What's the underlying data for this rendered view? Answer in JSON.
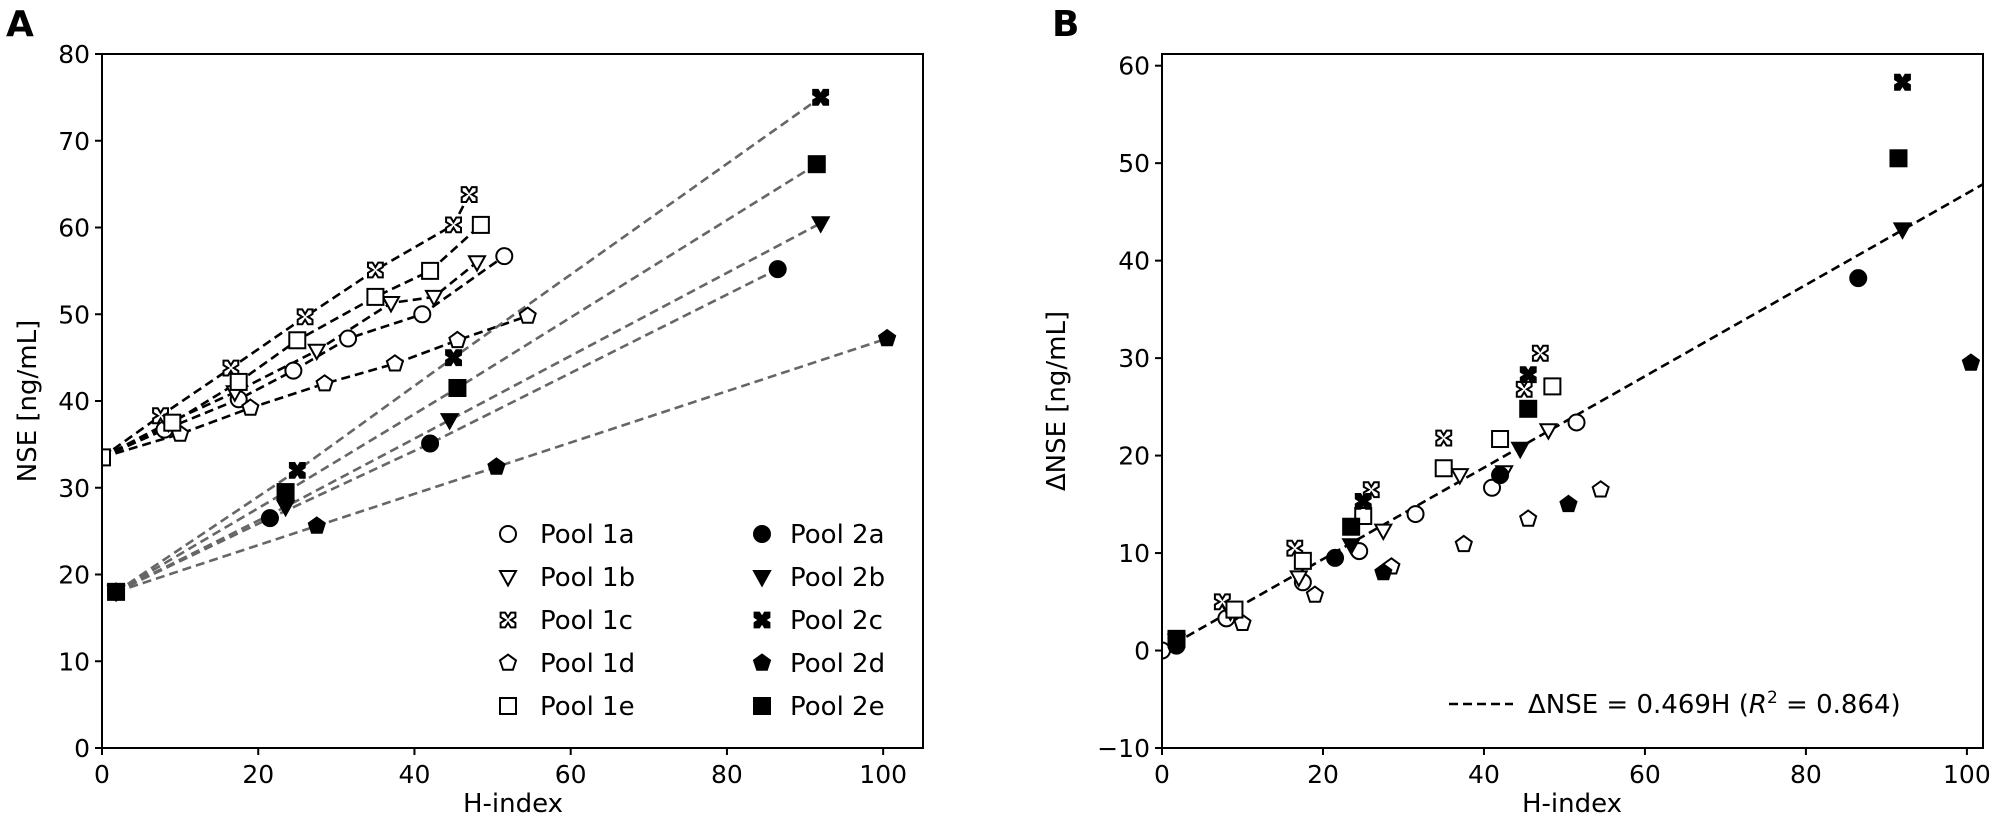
{
  "chart_data": [
    {
      "panel": "A",
      "type": "line",
      "xlabel": "H-index",
      "ylabel": "NSE [ng/mL]",
      "xlim": [
        0,
        105.1
      ],
      "ylim": [
        0,
        80
      ],
      "xticks": [
        0,
        20,
        40,
        60,
        80,
        100
      ],
      "yticks": [
        0,
        10,
        20,
        30,
        40,
        50,
        60,
        70,
        80
      ],
      "grid": false,
      "legend_placement": "lower-right",
      "series": [
        {
          "name": "Pool 1a",
          "marker": "circle",
          "filled": false,
          "line_color": "#000000",
          "points": [
            [
              0,
              33.5
            ],
            [
              8,
              36.7
            ],
            [
              17.5,
              40.2
            ],
            [
              24.5,
              43.5
            ],
            [
              31.5,
              47.2
            ],
            [
              41,
              50
            ],
            [
              51.5,
              56.7
            ]
          ]
        },
        {
          "name": "Pool 1b",
          "marker": "triangle-down",
          "filled": false,
          "line_color": "#000000",
          "points": [
            [
              0,
              33.5
            ],
            [
              8.5,
              37.5
            ],
            [
              17,
              41
            ],
            [
              27.5,
              45.8
            ],
            [
              37,
              51.3
            ],
            [
              42.5,
              52
            ],
            [
              48,
              56
            ]
          ]
        },
        {
          "name": "Pool 1c",
          "marker": "x",
          "filled": false,
          "line_color": "#000000",
          "points": [
            [
              0,
              33.5
            ],
            [
              7.5,
              38.3
            ],
            [
              16.5,
              43.8
            ],
            [
              26,
              49.7
            ],
            [
              35,
              55.1
            ],
            [
              45,
              60.3
            ],
            [
              47,
              63.8
            ]
          ]
        },
        {
          "name": "Pool 1d",
          "marker": "pentagon",
          "filled": false,
          "line_color": "#000000",
          "points": [
            [
              0,
              33.5
            ],
            [
              10,
              36.2
            ],
            [
              19,
              39.2
            ],
            [
              28.5,
              42
            ],
            [
              37.5,
              44.3
            ],
            [
              45.5,
              47
            ],
            [
              54.5,
              49.8
            ]
          ]
        },
        {
          "name": "Pool 1e",
          "marker": "square",
          "filled": false,
          "line_color": "#000000",
          "points": [
            [
              0,
              33.5
            ],
            [
              9,
              37.5
            ],
            [
              17.5,
              42.2
            ],
            [
              25,
              47
            ],
            [
              35,
              52
            ],
            [
              42,
              55
            ],
            [
              48.5,
              60.3
            ]
          ]
        },
        {
          "name": "Pool 2a",
          "marker": "circle",
          "filled": true,
          "line_color": "#666666",
          "points": [
            [
              1.8,
              18
            ],
            [
              21.5,
              26.5
            ],
            [
              42,
              35.1
            ],
            [
              86.5,
              55.2
            ]
          ]
        },
        {
          "name": "Pool 2b",
          "marker": "triangle-down",
          "filled": true,
          "line_color": "#666666",
          "points": [
            [
              1.8,
              18
            ],
            [
              23.5,
              27.8
            ],
            [
              44.5,
              37.8
            ],
            [
              92,
              60.5
            ]
          ]
        },
        {
          "name": "Pool 2c",
          "marker": "x",
          "filled": true,
          "line_color": "#666666",
          "points": [
            [
              1.8,
              18
            ],
            [
              25,
              32
            ],
            [
              45,
              45
            ],
            [
              92,
              75
            ]
          ]
        },
        {
          "name": "Pool 2d",
          "marker": "pentagon",
          "filled": true,
          "line_color": "#666666",
          "points": [
            [
              1.8,
              18
            ],
            [
              27.5,
              25.6
            ],
            [
              50.5,
              32.4
            ],
            [
              100.5,
              47.2
            ]
          ]
        },
        {
          "name": "Pool 2e",
          "marker": "square",
          "filled": true,
          "line_color": "#666666",
          "points": [
            [
              1.8,
              18
            ],
            [
              23.5,
              29.5
            ],
            [
              45.5,
              41.5
            ],
            [
              91.5,
              67.3
            ]
          ]
        }
      ]
    },
    {
      "panel": "B",
      "type": "scatter",
      "xlabel": "H-index",
      "ylabel": "ΔNSE [ng/mL]",
      "xlim": [
        0,
        102
      ],
      "ylim": [
        -10,
        61.2
      ],
      "xticks": [
        0,
        20,
        40,
        60,
        80,
        100
      ],
      "yticks": [
        -10,
        0,
        10,
        20,
        30,
        40,
        50,
        60
      ],
      "grid": false,
      "legend_placement": "lower-right",
      "fit": {
        "slope": 0.469,
        "r2": 0.864,
        "label_parts": [
          "ΔNSE = 0.469H (",
          "R",
          "2",
          " = 0.864)"
        ]
      },
      "series": [
        {
          "name": "Pool 1a",
          "marker": "circle",
          "filled": false,
          "points": [
            [
              0,
              0
            ],
            [
              8,
              3.3
            ],
            [
              17.5,
              7
            ],
            [
              24.5,
              10.2
            ],
            [
              31.5,
              14
            ],
            [
              41,
              16.7
            ],
            [
              51.5,
              23.4
            ]
          ]
        },
        {
          "name": "Pool 1b",
          "marker": "triangle-down",
          "filled": false,
          "points": [
            [
              8.5,
              4
            ],
            [
              17,
              7.5
            ],
            [
              27.5,
              12.3
            ],
            [
              37,
              18
            ],
            [
              42.5,
              18.3
            ],
            [
              48,
              22.6
            ]
          ]
        },
        {
          "name": "Pool 1c",
          "marker": "x",
          "filled": false,
          "points": [
            [
              7.5,
              5
            ],
            [
              16.5,
              10.5
            ],
            [
              26,
              16.5
            ],
            [
              35,
              21.8
            ],
            [
              45,
              26.8
            ],
            [
              47,
              30.5
            ]
          ]
        },
        {
          "name": "Pool 1d",
          "marker": "pentagon",
          "filled": false,
          "points": [
            [
              10,
              2.8
            ],
            [
              19,
              5.7
            ],
            [
              28.5,
              8.6
            ],
            [
              37.5,
              10.9
            ],
            [
              45.5,
              13.5
            ],
            [
              54.5,
              16.5
            ]
          ]
        },
        {
          "name": "Pool 1e",
          "marker": "square",
          "filled": false,
          "points": [
            [
              9,
              4.2
            ],
            [
              17.5,
              9.2
            ],
            [
              25,
              13.8
            ],
            [
              35,
              18.7
            ],
            [
              42,
              21.7
            ],
            [
              48.5,
              27.1
            ]
          ]
        },
        {
          "name": "Pool 2a",
          "marker": "circle",
          "filled": true,
          "points": [
            [
              1.8,
              0.5
            ],
            [
              21.5,
              9.5
            ],
            [
              42,
              18
            ],
            [
              86.5,
              38.2
            ]
          ]
        },
        {
          "name": "Pool 2b",
          "marker": "triangle-down",
          "filled": true,
          "points": [
            [
              1.8,
              1
            ],
            [
              23.5,
              10.8
            ],
            [
              44.5,
              20.7
            ],
            [
              92,
              43.2
            ]
          ]
        },
        {
          "name": "Pool 2c",
          "marker": "x",
          "filled": true,
          "points": [
            [
              1.8,
              1.2
            ],
            [
              25,
              15.3
            ],
            [
              45.5,
              28.3
            ],
            [
              92,
              58.3
            ]
          ]
        },
        {
          "name": "Pool 2d",
          "marker": "pentagon",
          "filled": true,
          "points": [
            [
              1.8,
              1
            ],
            [
              27.5,
              8
            ],
            [
              50.5,
              15
            ],
            [
              100.5,
              29.5
            ]
          ]
        },
        {
          "name": "Pool 2e",
          "marker": "square",
          "filled": true,
          "points": [
            [
              1.8,
              1.2
            ],
            [
              23.5,
              12.7
            ],
            [
              45.5,
              24.8
            ],
            [
              91.5,
              50.5
            ]
          ]
        }
      ]
    }
  ]
}
